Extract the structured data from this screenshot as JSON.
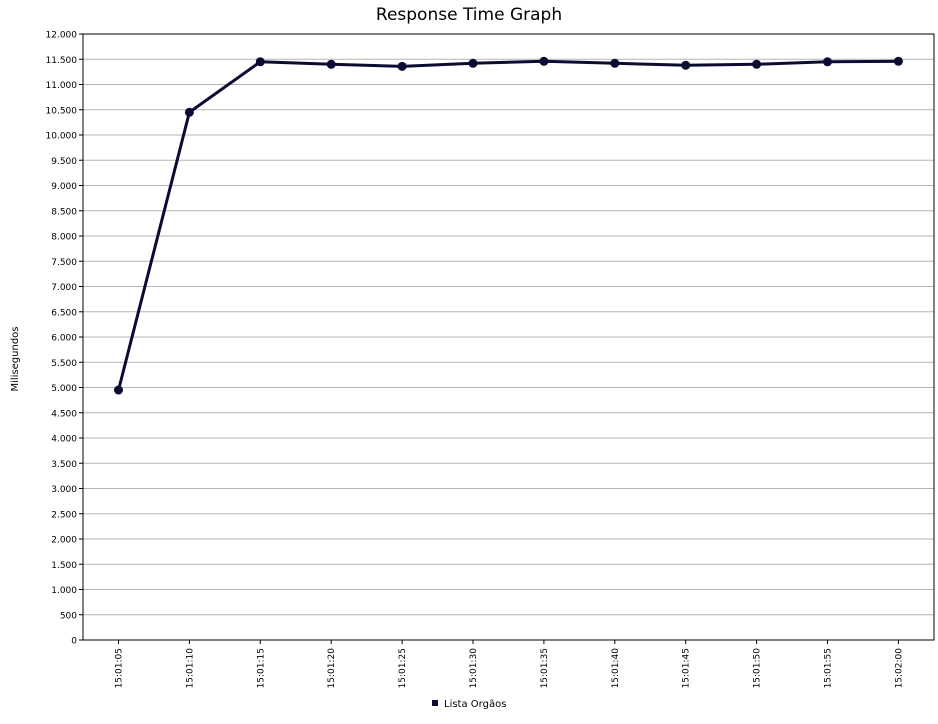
{
  "chart_data": {
    "type": "line",
    "title": "Response Time Graph",
    "xlabel": "",
    "ylabel": "Milisegundos",
    "ylim": [
      0,
      12000
    ],
    "y_ticks": [
      0,
      500,
      1000,
      1500,
      2000,
      2500,
      3000,
      3500,
      4000,
      4500,
      5000,
      5500,
      6000,
      6500,
      7000,
      7500,
      8000,
      8500,
      9000,
      9500,
      10000,
      10500,
      11000,
      11500,
      12000
    ],
    "y_tick_labels": [
      "0",
      "500",
      "1.000",
      "1.500",
      "2.000",
      "2.500",
      "3.000",
      "3.500",
      "4.000",
      "4.500",
      "5.000",
      "5.500",
      "6.000",
      "6.500",
      "7.000",
      "7.500",
      "8.000",
      "8.500",
      "9.000",
      "9.500",
      "10.000",
      "10.500",
      "11.000",
      "11.500",
      "12.000"
    ],
    "categories": [
      "15:01:05",
      "15:01:10",
      "15:01:15",
      "15:01:20",
      "15:01:25",
      "15:01:30",
      "15:01:35",
      "15:01:40",
      "15:01:45",
      "15:01:50",
      "15:01:55",
      "15:02:00"
    ],
    "grid": true,
    "legend_position": "bottom-center",
    "series": [
      {
        "name": "Lista Orgãos",
        "color": "#0b0b33",
        "values": [
          4950,
          10450,
          11450,
          11400,
          11360,
          11420,
          11460,
          11420,
          11380,
          11400,
          11450,
          11460
        ]
      }
    ]
  }
}
